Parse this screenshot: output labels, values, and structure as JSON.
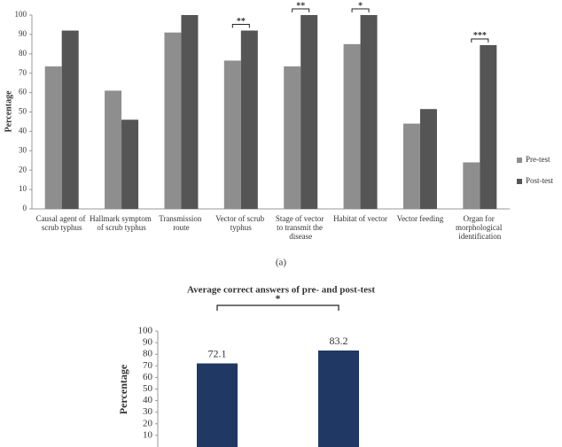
{
  "chart_data": [
    {
      "type": "bar",
      "y_label": "Percentage",
      "caption": "(a)",
      "categories": [
        "Causal agent of scrub typhus",
        "Hallmark symptom of scrub typhus",
        "Transmission route",
        "Vector of scrub typhus",
        "Stage of vector to transmit the disease",
        "Habitat of vector",
        "Vector feeding",
        "Organ for morphological identification"
      ],
      "series": [
        {
          "name": "Pre-test",
          "color": "#8e8e8e",
          "values": [
            73.5,
            61,
            91,
            76.5,
            73.5,
            85,
            44,
            24
          ]
        },
        {
          "name": "Post-test",
          "color": "#555555",
          "values": [
            92,
            46,
            100,
            92,
            100,
            100,
            51.5,
            84.5
          ]
        }
      ],
      "annotations": [
        {
          "category": "Vector of scrub typhus",
          "text": "**"
        },
        {
          "category": "Stage of vector to transmit the disease",
          "text": "**"
        },
        {
          "category": "Habitat of vector",
          "text": "*"
        },
        {
          "category": "Organ for morphological identification",
          "text": "***"
        }
      ],
      "ylim": [
        0,
        100
      ],
      "yticks": [
        0,
        10,
        20,
        30,
        40,
        50,
        60,
        70,
        80,
        90,
        100
      ],
      "legend": "right"
    },
    {
      "type": "bar",
      "title": "Average correct answers of pre- and post-test",
      "y_label": "Percentage",
      "values": [
        72.1,
        83.2
      ],
      "color": "#1f3864",
      "annotation": "*",
      "ylim": [
        0,
        100
      ],
      "yticks": [
        10,
        20,
        30,
        40,
        50,
        60,
        70,
        80,
        90,
        100
      ]
    }
  ]
}
